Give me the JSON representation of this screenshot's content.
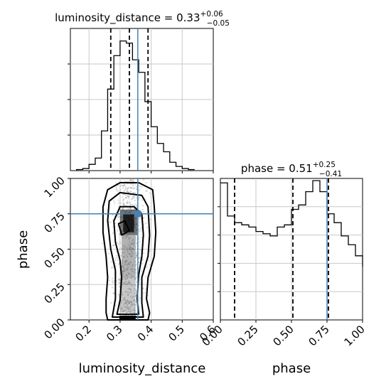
{
  "chart_data": [
    {
      "panel": "histogram-luminosity-distance",
      "type": "histogram",
      "title": {
        "prefix": "luminosity_distance = 0.33",
        "sup": "+0.06",
        "sub": "−0.05"
      },
      "xlim": [
        0.14,
        0.6
      ],
      "bins": [
        0.16,
        0.18,
        0.2,
        0.22,
        0.24,
        0.26,
        0.28,
        0.3,
        0.32,
        0.34,
        0.36,
        0.38,
        0.4,
        0.42,
        0.44,
        0.46,
        0.48,
        0.5,
        0.52,
        0.54
      ],
      "counts": [
        0.5,
        1.0,
        3.0,
        6.0,
        19.0,
        39.0,
        55.0,
        62.0,
        61.0,
        53.0,
        47.0,
        33.0,
        21.0,
        13.0,
        9.0,
        4.0,
        2.0,
        1.0,
        0.5
      ],
      "ymax": 68,
      "quantiles": [
        0.27,
        0.33,
        0.39
      ],
      "truth": 0.357,
      "grid": true
    },
    {
      "panel": "histogram-phase",
      "type": "histogram",
      "title": {
        "prefix": "phase = 0.51",
        "sup": "+0.25",
        "sub": "−0.41"
      },
      "xlim": [
        0.0,
        1.0
      ],
      "bins": [
        0.0,
        0.05,
        0.1,
        0.15,
        0.2,
        0.25,
        0.3,
        0.35,
        0.4,
        0.45,
        0.5,
        0.55,
        0.6,
        0.65,
        0.7,
        0.75,
        0.8,
        0.85,
        0.9,
        0.95,
        1.0
      ],
      "counts": [
        62,
        47,
        44,
        43,
        42,
        40,
        39,
        38,
        42,
        43,
        50,
        52,
        58,
        63,
        58,
        48,
        44,
        38,
        34,
        29,
        24
      ],
      "ymax": 64,
      "quantiles": [
        0.1,
        0.51,
        0.76
      ],
      "truth": 0.75,
      "grid": true,
      "x_ticks": [
        "0.00",
        "0.25",
        "0.50",
        "0.75",
        "1.00"
      ],
      "xlabel": "phase"
    },
    {
      "panel": "2d-density-luminosity-distance-vs-phase",
      "type": "scatter",
      "xlim": [
        0.14,
        0.6
      ],
      "ylim": [
        0.0,
        1.0
      ],
      "truth": {
        "x": 0.357,
        "y": 0.75
      },
      "x_ticks": [
        "0.2",
        "0.3",
        "0.4",
        "0.5",
        "0.6"
      ],
      "y_ticks": [
        "0.00",
        "0.25",
        "0.50",
        "0.75",
        "1.00"
      ],
      "xlabel": "luminosity_distance",
      "ylabel": "phase",
      "contours": [
        [
          [
            0.26,
            0.0
          ],
          [
            0.39,
            0.0
          ],
          [
            0.395,
            0.05
          ],
          [
            0.385,
            0.15
          ],
          [
            0.39,
            0.3
          ],
          [
            0.41,
            0.45
          ],
          [
            0.415,
            0.62
          ],
          [
            0.41,
            0.8
          ],
          [
            0.405,
            0.92
          ],
          [
            0.36,
            0.97
          ],
          [
            0.3,
            0.97
          ],
          [
            0.26,
            0.92
          ],
          [
            0.245,
            0.8
          ],
          [
            0.245,
            0.62
          ],
          [
            0.255,
            0.45
          ],
          [
            0.26,
            0.3
          ],
          [
            0.255,
            0.15
          ],
          [
            0.255,
            0.05
          ]
        ],
        [
          [
            0.275,
            0.02
          ],
          [
            0.375,
            0.02
          ],
          [
            0.37,
            0.12
          ],
          [
            0.37,
            0.3
          ],
          [
            0.39,
            0.45
          ],
          [
            0.395,
            0.6
          ],
          [
            0.39,
            0.8
          ],
          [
            0.37,
            0.88
          ],
          [
            0.3,
            0.9
          ],
          [
            0.265,
            0.84
          ],
          [
            0.26,
            0.7
          ],
          [
            0.27,
            0.5
          ],
          [
            0.285,
            0.35
          ],
          [
            0.285,
            0.15
          ]
        ],
        [
          [
            0.29,
            0.04
          ],
          [
            0.36,
            0.04
          ],
          [
            0.355,
            0.15
          ],
          [
            0.36,
            0.32
          ],
          [
            0.37,
            0.45
          ],
          [
            0.375,
            0.6
          ],
          [
            0.37,
            0.75
          ],
          [
            0.345,
            0.8
          ],
          [
            0.3,
            0.8
          ],
          [
            0.28,
            0.7
          ],
          [
            0.285,
            0.55
          ],
          [
            0.3,
            0.42
          ],
          [
            0.305,
            0.3
          ],
          [
            0.3,
            0.14
          ]
        ],
        [
          [
            0.295,
            0.68
          ],
          [
            0.305,
            0.6
          ],
          [
            0.33,
            0.63
          ],
          [
            0.315,
            0.7
          ]
        ],
        [
          [
            0.3,
            0.005
          ],
          [
            0.345,
            0.005
          ],
          [
            0.35,
            0.025
          ],
          [
            0.3,
            0.025
          ]
        ]
      ]
    }
  ],
  "colors": {
    "truth": "#4682b4",
    "hist": "#000000",
    "grid": "#c8c8c8",
    "scatter": "#8c8c8c"
  }
}
